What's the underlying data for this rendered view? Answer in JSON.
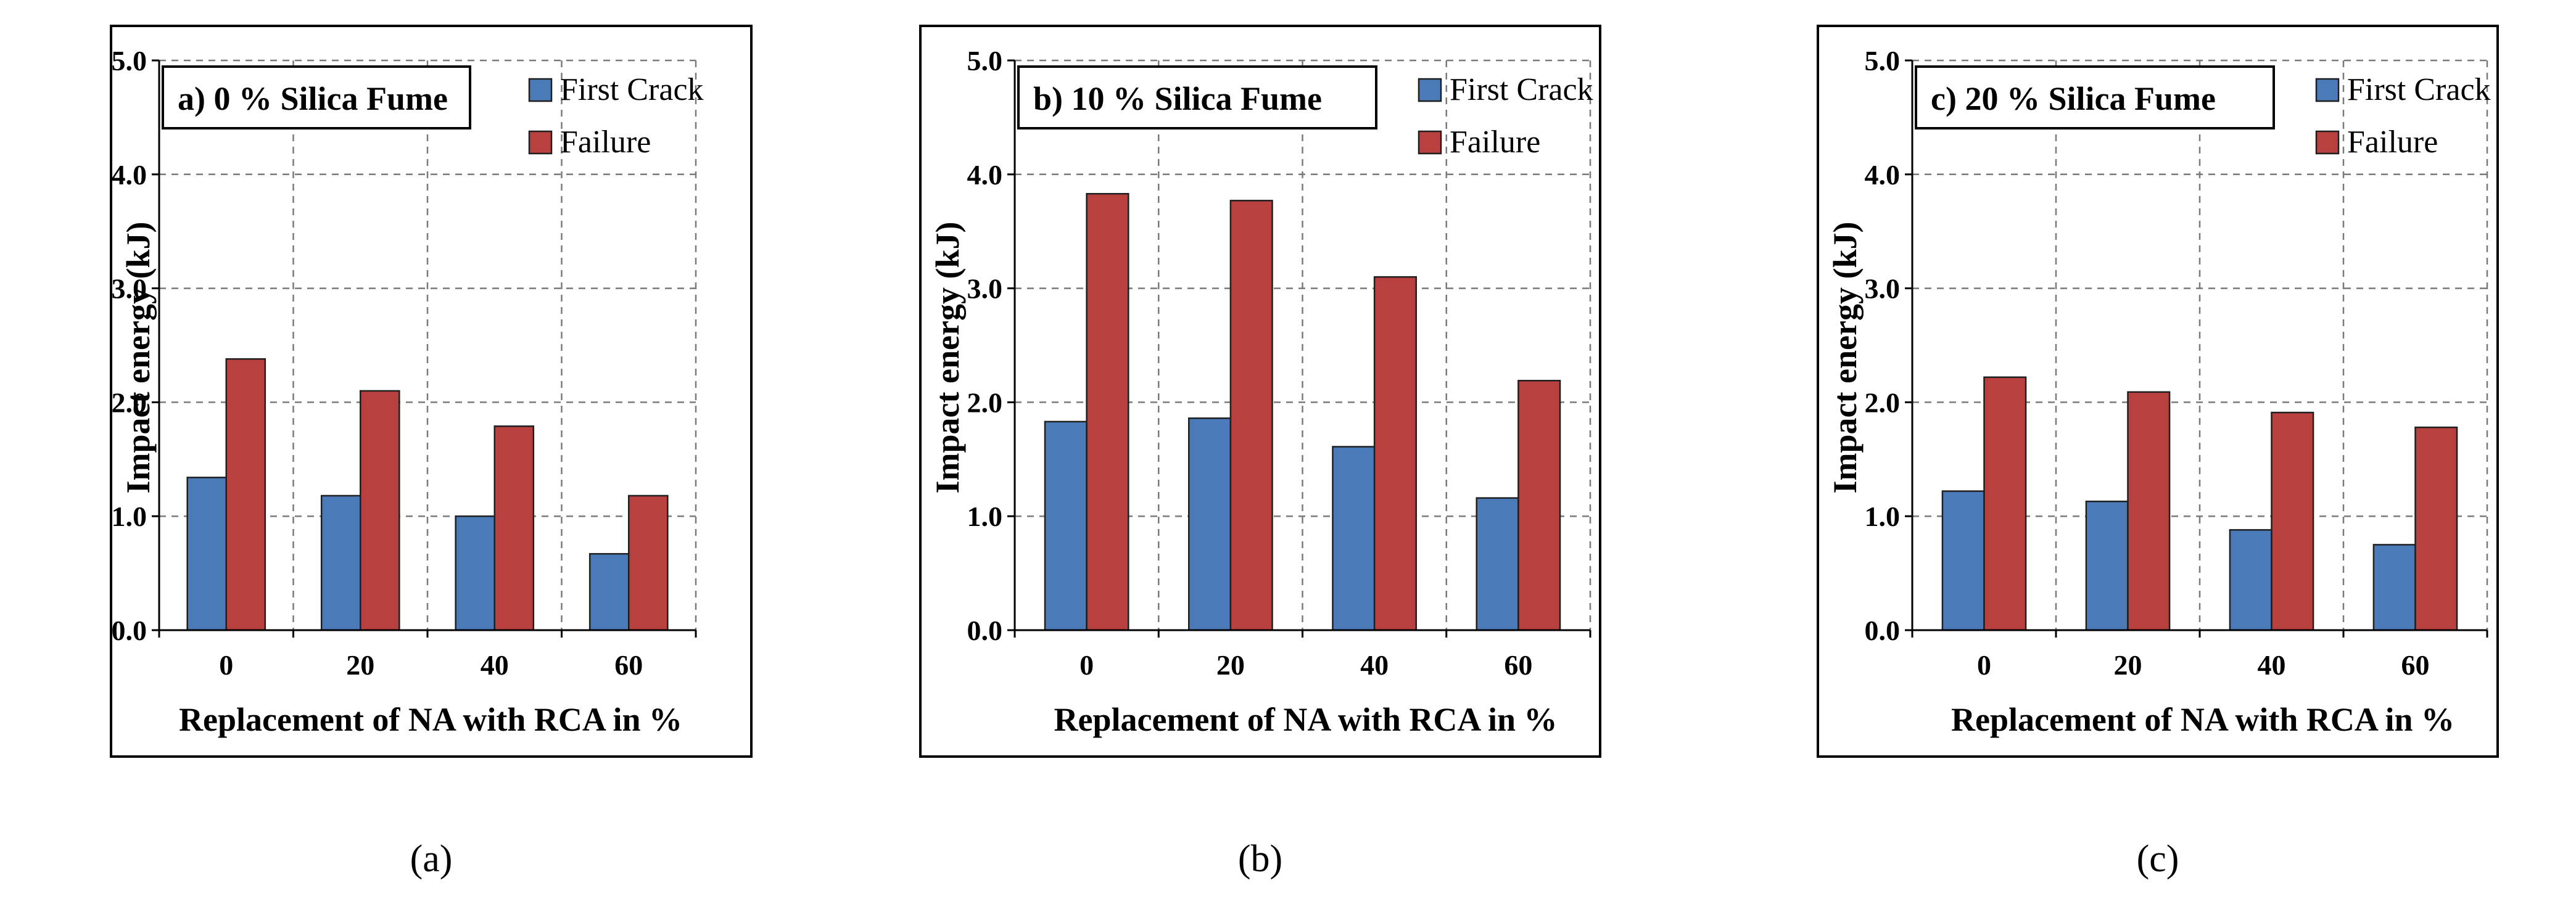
{
  "series_colors": {
    "First Crack": "#4a7bb8",
    "Failure": "#b8403f"
  },
  "chart_data": [
    {
      "type": "bar",
      "panel_label": "(a)",
      "title": "a) 0 % Silica Fume",
      "xlabel": "Replacement of NA with RCA in %",
      "ylabel": "Impact energy  (kJ)",
      "categories": [
        "0",
        "20",
        "40",
        "60"
      ],
      "ylim": [
        0,
        5
      ],
      "yticks": [
        "0.0",
        "1.0",
        "2.0",
        "3.0",
        "4.0",
        "5.0"
      ],
      "grid": true,
      "legend": "top-right",
      "series": [
        {
          "name": "First Crack",
          "values": [
            1.34,
            1.18,
            1.0,
            0.67
          ]
        },
        {
          "name": "Failure",
          "values": [
            2.38,
            2.1,
            1.79,
            1.18
          ]
        }
      ]
    },
    {
      "type": "bar",
      "panel_label": "(b)",
      "title": "b) 10 % Silica Fume",
      "xlabel": "Replacement of NA with RCA in %",
      "ylabel": "Impact energy  (kJ)",
      "categories": [
        "0",
        "20",
        "40",
        "60"
      ],
      "ylim": [
        0,
        5
      ],
      "yticks": [
        "0.0",
        "1.0",
        "2.0",
        "3.0",
        "4.0",
        "5.0"
      ],
      "grid": true,
      "legend": "top-right",
      "series": [
        {
          "name": "First Crack",
          "values": [
            1.83,
            1.86,
            1.61,
            1.16
          ]
        },
        {
          "name": "Failure",
          "values": [
            3.83,
            3.77,
            3.1,
            2.19
          ]
        }
      ]
    },
    {
      "type": "bar",
      "panel_label": "(c)",
      "title": "c) 20 % Silica Fume",
      "xlabel": "Replacement of NA with RCA in %",
      "ylabel": "Impact energy  (kJ)",
      "categories": [
        "0",
        "20",
        "40",
        "60"
      ],
      "ylim": [
        0,
        5
      ],
      "yticks": [
        "0.0",
        "1.0",
        "2.0",
        "3.0",
        "4.0",
        "5.0"
      ],
      "grid": true,
      "legend": "top-right",
      "series": [
        {
          "name": "First Crack",
          "values": [
            1.22,
            1.13,
            0.88,
            0.75
          ]
        },
        {
          "name": "Failure",
          "values": [
            2.22,
            2.09,
            1.91,
            1.78
          ]
        }
      ]
    }
  ]
}
